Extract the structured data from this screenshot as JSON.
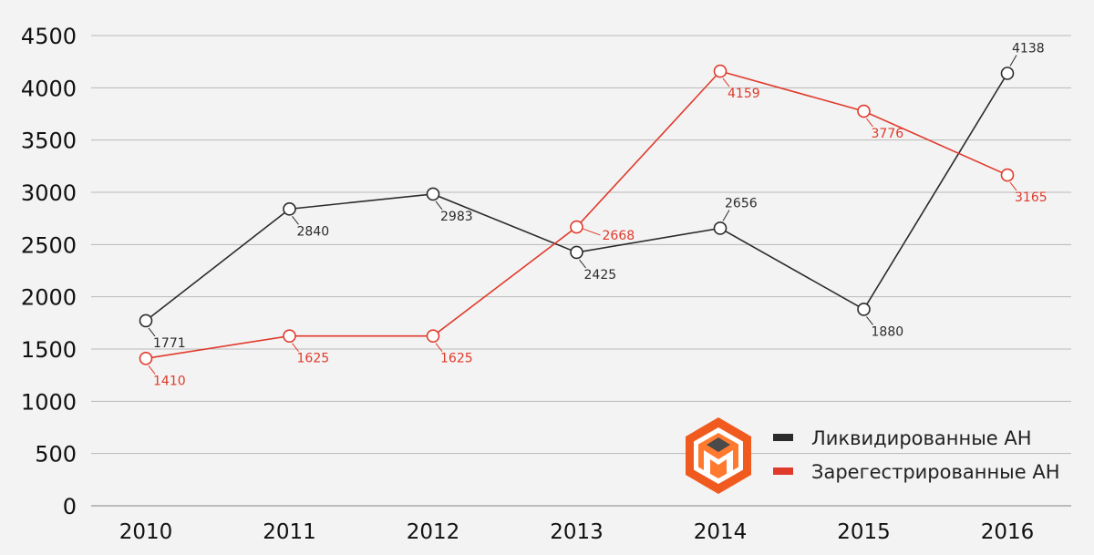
{
  "chart_data": {
    "type": "line",
    "title": "",
    "xlabel": "",
    "ylabel": "",
    "categories": [
      "2010",
      "2011",
      "2012",
      "2013",
      "2014",
      "2015",
      "2016"
    ],
    "ylim": [
      0,
      4500
    ],
    "yticks": [
      0,
      500,
      1000,
      1500,
      2000,
      2500,
      3000,
      3500,
      4000,
      4500
    ],
    "grid": true,
    "legend_position": "bottom-right",
    "series": [
      {
        "name": "Ликвидированные АН",
        "color": "#2b2b2b",
        "values": [
          1771,
          2840,
          2983,
          2425,
          2656,
          1880,
          4138
        ]
      },
      {
        "name": "Зарегестрированные АН",
        "color": "#e03a2b",
        "values": [
          1410,
          1625,
          1625,
          2668,
          4159,
          3776,
          3165
        ]
      }
    ]
  },
  "logo": {
    "icon": "hexagon-m-logo-icon",
    "colors": {
      "outer": "#f05a1e",
      "inner": "#ff8a3d",
      "dark": "#4a4a4a"
    }
  }
}
